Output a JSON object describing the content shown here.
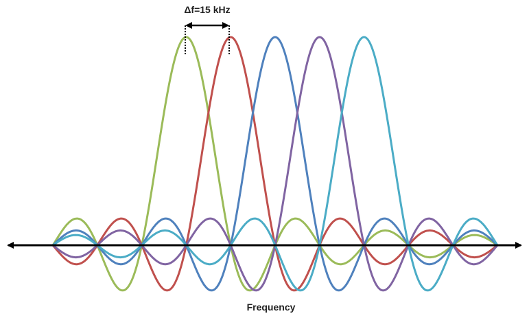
{
  "diagram": {
    "spacing_label": "Δf=15 kHz",
    "axis_label": "Frequency",
    "subcarriers": [
      {
        "color": "#9BBB59",
        "center_index": 3
      },
      {
        "color": "#C0504D",
        "center_index": 4
      },
      {
        "color": "#4F81BD",
        "center_index": 5
      },
      {
        "color": "#8064A2",
        "center_index": 6
      },
      {
        "color": "#4BACC6",
        "center_index": 7
      }
    ],
    "null_count": 10,
    "colors": {
      "axis": "#000000",
      "marker": "#000000"
    }
  }
}
